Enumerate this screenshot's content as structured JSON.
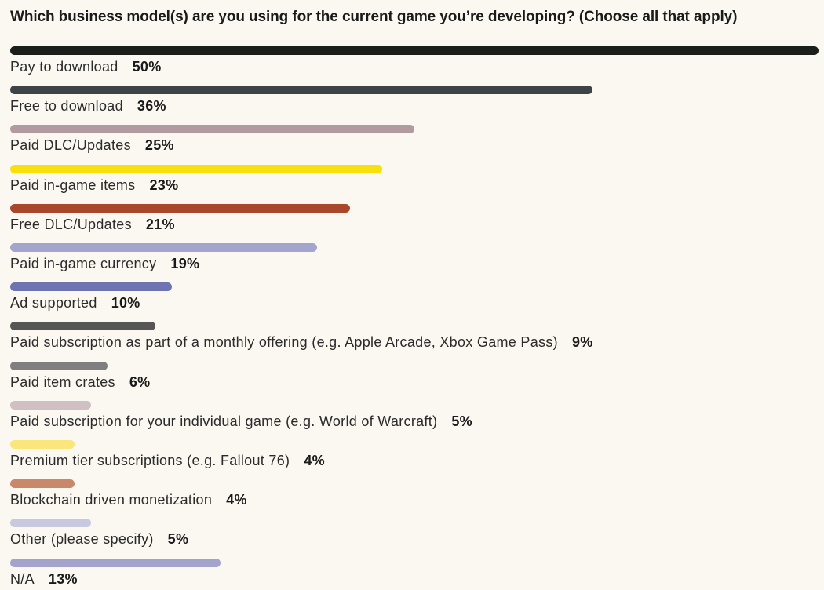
{
  "chart_data": {
    "type": "bar",
    "orientation": "horizontal",
    "title": "Which business model(s) are you using for the current game you’re developing? (Choose all that apply)",
    "xlim": [
      0,
      50
    ],
    "grid": false,
    "categories": [
      "Pay to download",
      "Free to download",
      "Paid DLC/Updates",
      "Paid in-game items",
      "Free DLC/Updates",
      "Paid in-game currency",
      "Ad supported",
      "Paid subscription as part of a monthly offering (e.g. Apple Arcade, Xbox Game Pass)",
      "Paid item crates",
      "Paid subscription for your individual game (e.g. World of Warcraft)",
      "Premium tier subscriptions (e.g. Fallout 76)",
      "Blockchain driven monetization",
      "Other (please specify)",
      "N/A"
    ],
    "values": [
      50,
      36,
      25,
      23,
      21,
      19,
      10,
      9,
      6,
      5,
      4,
      4,
      5,
      13
    ],
    "value_labels": [
      "50%",
      "36%",
      "25%",
      "23%",
      "21%",
      "19%",
      "10%",
      "9%",
      "6%",
      "5%",
      "4%",
      "4%",
      "5%",
      "13%"
    ],
    "colors": [
      "#1b1f1c",
      "#3d4447",
      "#b19aa0",
      "#f9df0b",
      "#a9472b",
      "#a3a5cd",
      "#6e74b1",
      "#565656",
      "#7f7f7f",
      "#d0bfc3",
      "#fae67a",
      "#c9886a",
      "#c8c8e0",
      "#a3a3cc"
    ]
  }
}
